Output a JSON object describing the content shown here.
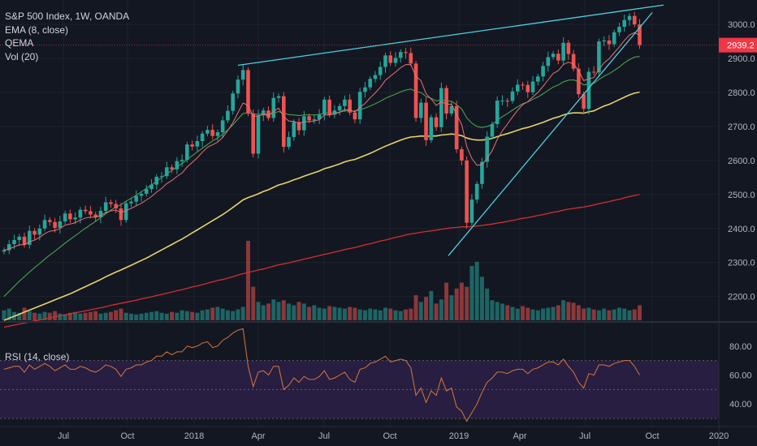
{
  "header": {
    "symbol": "S&P 500 Index, 1W, OANDA",
    "indicators": [
      "EMA (8, close)",
      "QEMA",
      "Vol (20)"
    ],
    "rsi_label": "RSI (14, close)"
  },
  "last_price": {
    "value": "2939.2",
    "color": "#f23645"
  },
  "colors": {
    "background": "#131722",
    "grid": "#1e222d",
    "up_candle": "#26a69a",
    "down_candle": "#ef5350",
    "ema8": "#e57373",
    "qema_green": "#4caf50",
    "qema_yellow": "#e6d36a",
    "qema_red": "#d32f2f",
    "trendline": "#4dd0e1",
    "rsi_line": "#d9763a",
    "rsi_band": "#2a1f45"
  },
  "chart_data": [
    {
      "type": "candlestick",
      "title": "S&P 500 Index, 1W, OANDA",
      "x_tick_labels": [
        "Jul",
        "Oct",
        "2018",
        "Apr",
        "Jul",
        "Oct",
        "2019",
        "Apr",
        "Jul",
        "Oct",
        "2020"
      ],
      "y_tick_labels": [
        "3000.0",
        "2900.0",
        "2800.0",
        "2700.0",
        "2600.0",
        "2500.0",
        "2400.0",
        "2300.0",
        "2200.0"
      ],
      "ylim": [
        2130,
        3060
      ],
      "x_range": [
        "2017-03-13",
        "2020-01-20"
      ],
      "candles_close": [
        2336,
        2354,
        2366,
        2376,
        2352,
        2393,
        2382,
        2400,
        2425,
        2419,
        2402,
        2421,
        2444,
        2427,
        2432,
        2455,
        2451,
        2441,
        2433,
        2452,
        2477,
        2472,
        2459,
        2425,
        2474,
        2479,
        2496,
        2502,
        2516,
        2529,
        2552,
        2554,
        2580,
        2574,
        2598,
        2602,
        2647,
        2641,
        2657,
        2679,
        2690,
        2672,
        2683,
        2718,
        2746,
        2797,
        2838,
        2866,
        2738,
        2620,
        2733,
        2747,
        2725,
        2784,
        2789,
        2640,
        2669,
        2713,
        2689,
        2730,
        2718,
        2721,
        2735,
        2779,
        2735,
        2747,
        2760,
        2779,
        2741,
        2721,
        2802,
        2815,
        2840,
        2851,
        2875,
        2909,
        2887,
        2902,
        2919,
        2916,
        2885,
        2725,
        2770,
        2660,
        2727,
        2698,
        2813,
        2738,
        2760,
        2633,
        2600,
        2417,
        2485,
        2531,
        2596,
        2670,
        2707,
        2776,
        2776,
        2775,
        2803,
        2823,
        2822,
        2801,
        2832,
        2847,
        2878,
        2904,
        2914,
        2894,
        2946,
        2913,
        2870,
        2795,
        2752,
        2861,
        2859,
        2950,
        2953,
        2942,
        2977,
        2993,
        3013,
        3025,
        3000,
        2939
      ],
      "ema8": [
        2336,
        2340,
        2346,
        2352,
        2352,
        2361,
        2366,
        2374,
        2385,
        2392,
        2394,
        2400,
        2410,
        2413,
        2417,
        2425,
        2431,
        2433,
        2433,
        2438,
        2447,
        2452,
        2454,
        2447,
        2453,
        2459,
        2467,
        2474,
        2484,
        2494,
        2507,
        2518,
        2532,
        2541,
        2553,
        2563,
        2581,
        2594,
        2608,
        2624,
        2639,
        2646,
        2654,
        2668,
        2688,
        2711,
        2741,
        2769,
        2762,
        2730,
        2731,
        2735,
        2732,
        2744,
        2754,
        2728,
        2716,
        2715,
        2709,
        2714,
        2714,
        2716,
        2720,
        2734,
        2734,
        2737,
        2742,
        2750,
        2748,
        2743,
        2756,
        2768,
        2784,
        2799,
        2815,
        2836,
        2848,
        2860,
        2873,
        2882,
        2882,
        2847,
        2835,
        2796,
        2781,
        2762,
        2773,
        2766,
        2765,
        2736,
        2706,
        2641,
        2606,
        2586,
        2588,
        2606,
        2629,
        2662,
        2687,
        2707,
        2728,
        2748,
        2764,
        2773,
        2787,
        2800,
        2818,
        2837,
        2856,
        2864,
        2882,
        2889,
        2884,
        2864,
        2835,
        2840,
        2844,
        2868,
        2887,
        2899,
        2917,
        2934,
        2953,
        2969,
        2976,
        2968
      ],
      "qema_green": [
        2200,
        2215,
        2230,
        2245,
        2258,
        2272,
        2285,
        2297,
        2310,
        2322,
        2333,
        2345,
        2357,
        2368,
        2379,
        2390,
        2401,
        2411,
        2421,
        2432,
        2443,
        2454,
        2463,
        2470,
        2480,
        2489,
        2498,
        2508,
        2518,
        2528,
        2539,
        2550,
        2561,
        2571,
        2581,
        2591,
        2603,
        2614,
        2625,
        2636,
        2647,
        2657,
        2666,
        2677,
        2690,
        2705,
        2722,
        2738,
        2740,
        2737,
        2736,
        2737,
        2736,
        2739,
        2744,
        2739,
        2735,
        2734,
        2732,
        2734,
        2734,
        2734,
        2735,
        2740,
        2740,
        2740,
        2742,
        2746,
        2746,
        2745,
        2749,
        2754,
        2760,
        2767,
        2774,
        2783,
        2789,
        2795,
        2802,
        2807,
        2810,
        2802,
        2800,
        2788,
        2783,
        2775,
        2778,
        2775,
        2774,
        2764,
        2752,
        2725,
        2710,
        2700,
        2697,
        2700,
        2706,
        2718,
        2729,
        2738,
        2748,
        2758,
        2767,
        2772,
        2780,
        2787,
        2796,
        2806,
        2816,
        2822,
        2831,
        2836,
        2837,
        2832,
        2822,
        2825,
        2827,
        2838,
        2848,
        2855,
        2865,
        2875,
        2887,
        2897,
        2904,
        2906
      ],
      "qema_yellow": [
        2130,
        2136,
        2142,
        2148,
        2154,
        2160,
        2166,
        2172,
        2178,
        2184,
        2190,
        2196,
        2202,
        2208,
        2215,
        2222,
        2229,
        2236,
        2243,
        2250,
        2258,
        2265,
        2272,
        2278,
        2285,
        2292,
        2299,
        2306,
        2313,
        2321,
        2329,
        2337,
        2345,
        2353,
        2361,
        2369,
        2378,
        2387,
        2396,
        2405,
        2414,
        2423,
        2432,
        2441,
        2451,
        2462,
        2473,
        2484,
        2491,
        2496,
        2502,
        2509,
        2514,
        2521,
        2528,
        2532,
        2537,
        2543,
        2548,
        2554,
        2559,
        2564,
        2569,
        2576,
        2580,
        2585,
        2590,
        2596,
        2600,
        2603,
        2609,
        2615,
        2621,
        2628,
        2635,
        2642,
        2648,
        2654,
        2660,
        2665,
        2669,
        2670,
        2672,
        2671,
        2672,
        2672,
        2675,
        2676,
        2678,
        2676,
        2673,
        2666,
        2662,
        2660,
        2660,
        2662,
        2665,
        2670,
        2675,
        2679,
        2684,
        2689,
        2694,
        2697,
        2702,
        2707,
        2712,
        2718,
        2724,
        2728,
        2734,
        2738,
        2740,
        2740,
        2739,
        2743,
        2746,
        2753,
        2760,
        2765,
        2772,
        2779,
        2786,
        2793,
        2798,
        2801
      ],
      "qema_red": [
        2110,
        2113,
        2116,
        2119,
        2122,
        2125,
        2128,
        2131,
        2134,
        2137,
        2140,
        2143,
        2146,
        2149,
        2152,
        2155,
        2158,
        2161,
        2164,
        2167,
        2170,
        2174,
        2177,
        2180,
        2183,
        2186,
        2189,
        2193,
        2196,
        2199,
        2203,
        2206,
        2210,
        2213,
        2217,
        2220,
        2224,
        2228,
        2231,
        2235,
        2239,
        2243,
        2247,
        2250,
        2254,
        2258,
        2263,
        2267,
        2271,
        2274,
        2278,
        2281,
        2285,
        2289,
        2293,
        2296,
        2299,
        2303,
        2306,
        2310,
        2313,
        2317,
        2320,
        2324,
        2327,
        2331,
        2334,
        2338,
        2341,
        2344,
        2348,
        2352,
        2355,
        2359,
        2363,
        2366,
        2370,
        2374,
        2377,
        2381,
        2384,
        2386,
        2389,
        2391,
        2393,
        2395,
        2398,
        2400,
        2402,
        2403,
        2405,
        2405,
        2406,
        2407,
        2409,
        2411,
        2413,
        2416,
        2418,
        2421,
        2424,
        2427,
        2430,
        2432,
        2435,
        2438,
        2441,
        2444,
        2448,
        2450,
        2454,
        2457,
        2459,
        2461,
        2463,
        2466,
        2469,
        2473,
        2476,
        2479,
        2483,
        2486,
        2490,
        2494,
        2497,
        2500
      ],
      "volume": [
        12,
        14,
        10,
        9,
        15,
        11,
        9,
        8,
        10,
        9,
        11,
        8,
        7,
        9,
        10,
        8,
        9,
        10,
        11,
        8,
        9,
        10,
        12,
        14,
        9,
        8,
        7,
        8,
        9,
        10,
        11,
        9,
        8,
        10,
        9,
        12,
        11,
        10,
        9,
        12,
        13,
        15,
        16,
        14,
        12,
        11,
        13,
        16,
        95,
        40,
        22,
        18,
        20,
        25,
        22,
        24,
        20,
        18,
        22,
        20,
        16,
        18,
        15,
        14,
        17,
        16,
        15,
        14,
        16,
        15,
        13,
        12,
        14,
        13,
        12,
        15,
        14,
        12,
        11,
        13,
        14,
        30,
        22,
        28,
        35,
        20,
        25,
        45,
        30,
        38,
        45,
        40,
        65,
        70,
        52,
        38,
        24,
        22,
        20,
        18,
        16,
        14,
        17,
        15,
        13,
        12,
        14,
        15,
        16,
        18,
        24,
        22,
        21,
        18,
        14,
        15,
        13,
        12,
        14,
        12,
        13,
        15,
        14,
        12,
        13,
        18
      ],
      "volume_colors": "up/down by candle"
    },
    {
      "type": "line",
      "title": "RSI (14, close)",
      "y_tick_labels": [
        "80.00",
        "60.00",
        "40.00"
      ],
      "ylim": [
        25,
        95
      ],
      "upper_band": 70,
      "lower_band": 30,
      "values": [
        64,
        65,
        66,
        66,
        62,
        67,
        64,
        66,
        68,
        66,
        63,
        65,
        67,
        64,
        64,
        66,
        65,
        63,
        62,
        64,
        67,
        66,
        64,
        59,
        64,
        65,
        67,
        67,
        69,
        70,
        73,
        73,
        76,
        74,
        76,
        76,
        80,
        79,
        80,
        82,
        83,
        79,
        80,
        84,
        86,
        89,
        91,
        92,
        66,
        52,
        62,
        63,
        60,
        66,
        66,
        50,
        53,
        58,
        55,
        59,
        57,
        57,
        59,
        63,
        57,
        58,
        60,
        62,
        57,
        55,
        64,
        65,
        68,
        69,
        71,
        73,
        69,
        70,
        71,
        70,
        65,
        46,
        51,
        41,
        49,
        46,
        58,
        49,
        51,
        38,
        35,
        28,
        34,
        40,
        48,
        55,
        58,
        62,
        62,
        61,
        63,
        64,
        64,
        61,
        64,
        65,
        67,
        69,
        69,
        67,
        71,
        66,
        62,
        55,
        51,
        61,
        60,
        67,
        67,
        66,
        68,
        69,
        70,
        70,
        66,
        60
      ]
    }
  ]
}
